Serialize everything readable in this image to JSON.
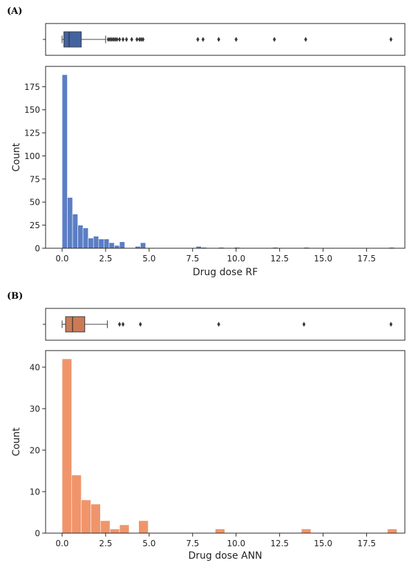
{
  "chart_data": [
    {
      "panel_label": "(A)",
      "type": "histogram-with-boxplot",
      "title": "",
      "xlabel": "Drug dose RF",
      "ylabel": "Count",
      "color": "#5b7ec4",
      "box_color": "#4263a0",
      "xlim": [
        -0.95,
        19.7
      ],
      "ylim": [
        0,
        197
      ],
      "x_ticks": [
        0.0,
        2.5,
        5.0,
        7.5,
        10.0,
        12.5,
        15.0,
        17.5
      ],
      "x_tick_labels": [
        "0.0",
        "2.5",
        "5.0",
        "7.5",
        "10.0",
        "12.5",
        "15.0",
        "17.5"
      ],
      "y_ticks": [
        0,
        25,
        50,
        75,
        100,
        125,
        150,
        175
      ],
      "y_tick_labels": [
        "0",
        "25",
        "50",
        "75",
        "100",
        "125",
        "150",
        "175"
      ],
      "bin_width": 0.3,
      "bins": [
        {
          "x": 0.0,
          "count": 188
        },
        {
          "x": 0.3,
          "count": 55
        },
        {
          "x": 0.6,
          "count": 37
        },
        {
          "x": 0.9,
          "count": 25
        },
        {
          "x": 1.2,
          "count": 22
        },
        {
          "x": 1.5,
          "count": 11
        },
        {
          "x": 1.8,
          "count": 13
        },
        {
          "x": 2.1,
          "count": 10
        },
        {
          "x": 2.4,
          "count": 10
        },
        {
          "x": 2.7,
          "count": 6
        },
        {
          "x": 3.0,
          "count": 3
        },
        {
          "x": 3.3,
          "count": 7
        },
        {
          "x": 4.2,
          "count": 2
        },
        {
          "x": 4.5,
          "count": 6
        },
        {
          "x": 7.7,
          "count": 2
        },
        {
          "x": 8.0,
          "count": 1
        },
        {
          "x": 9.0,
          "count": 1
        },
        {
          "x": 9.9,
          "count": 1
        },
        {
          "x": 12.1,
          "count": 1
        },
        {
          "x": 13.9,
          "count": 1
        },
        {
          "x": 18.8,
          "count": 1
        }
      ],
      "boxplot": {
        "whisker_low": 0.0,
        "q1": 0.1,
        "median": 0.4,
        "q3": 1.1,
        "whisker_high": 2.5,
        "outliers": [
          2.65,
          2.75,
          2.85,
          2.95,
          3.05,
          3.15,
          3.3,
          3.5,
          3.7,
          4.0,
          4.3,
          4.45,
          4.55,
          4.65,
          7.8,
          8.1,
          9.0,
          10.0,
          12.2,
          14.0,
          18.9
        ]
      }
    },
    {
      "panel_label": "(B)",
      "type": "histogram-with-boxplot",
      "title": "",
      "xlabel": "Drug dose ANN",
      "ylabel": "Count",
      "color": "#f0956b",
      "box_color": "#cc7a56",
      "xlim": [
        -0.95,
        19.7
      ],
      "ylim": [
        0,
        44
      ],
      "x_ticks": [
        0.0,
        2.5,
        5.0,
        7.5,
        10.0,
        12.5,
        15.0,
        17.5
      ],
      "x_tick_labels": [
        "0.0",
        "2.5",
        "5.0",
        "7.5",
        "10.0",
        "12.5",
        "15.0",
        "17.5"
      ],
      "y_ticks": [
        0,
        10,
        20,
        30,
        40
      ],
      "y_tick_labels": [
        "0",
        "10",
        "20",
        "30",
        "40"
      ],
      "bin_width": 0.55,
      "bins": [
        {
          "x": 0.0,
          "count": 42
        },
        {
          "x": 0.55,
          "count": 14
        },
        {
          "x": 1.1,
          "count": 8
        },
        {
          "x": 1.65,
          "count": 7
        },
        {
          "x": 2.2,
          "count": 3
        },
        {
          "x": 2.75,
          "count": 1
        },
        {
          "x": 3.3,
          "count": 2
        },
        {
          "x": 4.4,
          "count": 3
        },
        {
          "x": 8.8,
          "count": 1
        },
        {
          "x": 13.75,
          "count": 1
        },
        {
          "x": 18.7,
          "count": 1
        }
      ],
      "boxplot": {
        "whisker_low": 0.0,
        "q1": 0.2,
        "median": 0.6,
        "q3": 1.3,
        "whisker_high": 2.6,
        "outliers": [
          3.3,
          3.5,
          4.5,
          9.0,
          13.9,
          18.9
        ]
      }
    }
  ]
}
